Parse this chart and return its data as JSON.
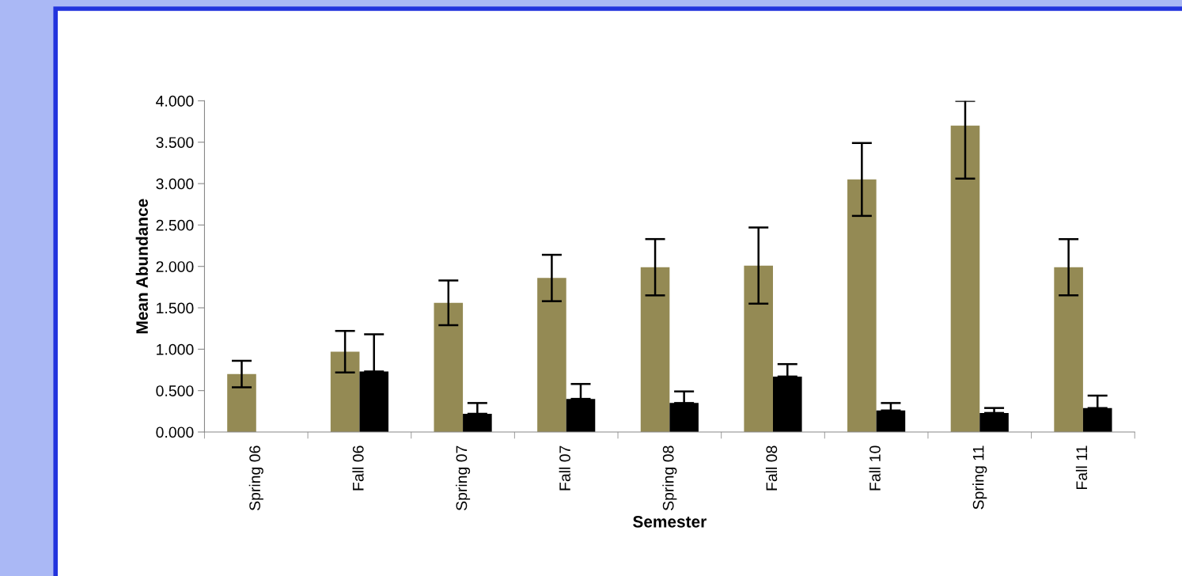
{
  "chart_data": {
    "type": "bar",
    "xlabel": "Semester",
    "ylabel": "Mean Abundance",
    "categories": [
      "Spring 06",
      "Fall 06",
      "Spring 07",
      "Fall 07",
      "Spring 08",
      "Fall 08",
      "Fall 10",
      "Spring 11",
      "Fall 11"
    ],
    "series": [
      {
        "color": "#948a54",
        "values": [
          0.7,
          0.97,
          1.56,
          1.86,
          1.99,
          2.01,
          3.05,
          3.7,
          1.99
        ],
        "errors": [
          0.16,
          0.25,
          0.27,
          0.28,
          0.34,
          0.46,
          0.44,
          [
            3.06,
            4.0
          ],
          0.34
        ]
      },
      {
        "color": "#000000",
        "values": [
          null,
          0.73,
          0.22,
          0.4,
          0.35,
          0.67,
          0.26,
          0.23,
          0.29
        ],
        "errors": [
          null,
          [
            0.73,
            1.18
          ],
          [
            0.22,
            0.35
          ],
          [
            0.4,
            0.58
          ],
          [
            0.35,
            0.49
          ],
          [
            0.67,
            0.82
          ],
          [
            0.26,
            0.35
          ],
          [
            0.23,
            0.29
          ],
          [
            0.29,
            0.44
          ]
        ]
      }
    ],
    "ylim": [
      0,
      4
    ],
    "yticks": [
      {
        "value": 0,
        "label": "0.000"
      },
      {
        "value": 0.5,
        "label": "0.500"
      },
      {
        "value": 1,
        "label": "1.000"
      },
      {
        "value": 1.5,
        "label": "1.500"
      },
      {
        "value": 2,
        "label": "2.000"
      },
      {
        "value": 2.5,
        "label": "2.500"
      },
      {
        "value": 3,
        "label": "3.000"
      },
      {
        "value": 3.5,
        "label": "3.500"
      },
      {
        "value": 4,
        "label": "4.000"
      }
    ],
    "grid": false
  }
}
